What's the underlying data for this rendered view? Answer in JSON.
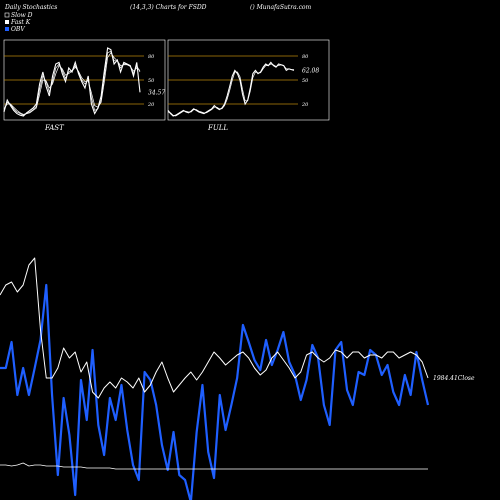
{
  "header": {
    "left": "Daily Stochastics",
    "center": "(14,3,3) Charts for FSDD",
    "right": "() MunafaSutra.com"
  },
  "legend": [
    {
      "label": "Slow  D",
      "color": "#ffffff",
      "filled": false
    },
    {
      "label": "Fast  K",
      "color": "#ffffff",
      "filled": true
    },
    {
      "label": "OBV",
      "color": "#1f5fff",
      "filled": true
    }
  ],
  "colors": {
    "background": "#000000",
    "level_line": "#b8860b",
    "obv": "#1f5fff",
    "line": "#ffffff"
  },
  "chart_data": [
    {
      "type": "line",
      "name": "fast-panel",
      "panel_label": "FAST",
      "ylim": [
        0,
        100
      ],
      "yticks": [
        "80",
        "50",
        "20"
      ],
      "levels": [
        80,
        50,
        20
      ],
      "last_value_label": "34.57",
      "series": [
        {
          "values": [
            10,
            25,
            18,
            12,
            8,
            6,
            5,
            9,
            12,
            15,
            20,
            45,
            60,
            42,
            30,
            55,
            70,
            72,
            58,
            48,
            65,
            60,
            72,
            58,
            48,
            40,
            55,
            20,
            8,
            15,
            30,
            62,
            90,
            88,
            70,
            75,
            60,
            72,
            70,
            68,
            55,
            72,
            34.57
          ]
        },
        {
          "values": [
            12,
            22,
            20,
            14,
            10,
            8,
            6,
            8,
            10,
            13,
            17,
            38,
            55,
            48,
            35,
            48,
            65,
            70,
            62,
            52,
            60,
            62,
            68,
            60,
            50,
            45,
            50,
            28,
            12,
            14,
            25,
            55,
            84,
            86,
            74,
            74,
            65,
            70,
            70,
            67,
            58,
            68,
            60
          ]
        },
        {
          "values": [
            14,
            20,
            20,
            16,
            12,
            9,
            7,
            8,
            9,
            12,
            15,
            32,
            50,
            49,
            40,
            45,
            58,
            68,
            64,
            56,
            58,
            61,
            66,
            61,
            53,
            48,
            49,
            34,
            18,
            16,
            22,
            48,
            78,
            84,
            78,
            74,
            68,
            69,
            69,
            67,
            61,
            65,
            62
          ]
        }
      ]
    },
    {
      "type": "line",
      "name": "full-panel",
      "panel_label": "FULL",
      "ylim": [
        0,
        100
      ],
      "yticks": [
        "80",
        "50",
        "20"
      ],
      "levels": [
        80,
        50,
        20
      ],
      "last_value_label": "62.08",
      "series": [
        {
          "values": [
            12,
            8,
            5,
            6,
            8,
            10,
            12,
            10,
            9,
            11,
            14,
            12,
            10,
            9,
            8,
            10,
            12,
            14,
            18,
            15,
            13,
            15,
            20,
            30,
            42,
            55,
            62,
            58,
            50,
            32,
            20,
            25,
            40,
            58,
            62,
            58,
            60,
            66,
            70,
            68,
            72,
            68,
            66,
            70,
            69,
            68,
            62,
            64,
            63,
            62.08
          ]
        },
        {
          "values": [
            10,
            9,
            6,
            5,
            7,
            9,
            11,
            11,
            10,
            10,
            13,
            13,
            11,
            10,
            9,
            9,
            11,
            13,
            16,
            16,
            14,
            14,
            18,
            26,
            37,
            50,
            60,
            60,
            54,
            38,
            24,
            24,
            36,
            53,
            60,
            59,
            59,
            64,
            68,
            68,
            70,
            69,
            67,
            68,
            69,
            68,
            64,
            64,
            63,
            63
          ]
        }
      ]
    },
    {
      "type": "line",
      "name": "price-panel",
      "last_value_label": "1984.41Close",
      "series": [
        {
          "name": "OBV",
          "values": [
            368,
            368,
            342,
            395,
            368,
            395,
            368,
            340,
            285,
            395,
            475,
            398,
            435,
            495,
            380,
            420,
            350,
            425,
            455,
            398,
            420,
            385,
            430,
            465,
            480,
            372,
            380,
            405,
            445,
            470,
            432,
            475,
            480,
            502,
            432,
            385,
            452,
            478,
            395,
            430,
            405,
            378,
            325,
            342,
            360,
            370,
            340,
            365,
            350,
            332,
            362,
            375,
            400,
            380,
            345,
            358,
            405,
            425,
            350,
            342,
            390,
            405,
            372,
            375,
            350,
            355,
            375,
            365,
            392,
            405,
            375,
            395,
            352,
            380,
            405
          ]
        },
        {
          "name": "",
          "values": [
            295,
            285,
            282,
            292,
            285,
            265,
            258,
            330,
            378,
            378,
            368,
            348,
            358,
            352,
            372,
            362,
            392,
            398,
            388,
            382,
            388,
            378,
            382,
            388,
            378,
            392,
            385,
            372,
            362,
            378,
            392,
            385,
            378,
            372,
            380,
            372,
            362,
            352,
            358,
            365,
            360,
            355,
            352,
            358,
            368,
            375,
            370,
            358,
            352,
            360,
            368,
            378,
            372,
            355,
            352,
            358,
            362,
            358,
            350,
            352,
            358,
            352,
            352,
            358,
            355,
            355,
            358,
            352,
            352,
            358,
            355,
            352,
            355,
            362,
            378
          ]
        },
        {
          "name": "",
          "values": [
            465,
            465,
            466,
            465,
            463,
            466,
            465,
            465,
            466,
            466,
            466,
            467,
            467,
            467,
            467,
            468,
            468,
            468,
            468,
            468,
            469,
            469,
            469,
            469,
            469,
            469,
            469,
            469,
            469,
            469,
            469,
            469,
            469,
            469,
            469,
            469,
            469,
            469,
            469,
            469,
            469,
            469,
            469,
            469,
            469,
            469,
            469,
            469,
            469,
            469,
            469,
            469,
            469,
            469,
            469,
            469,
            469,
            469,
            469,
            469,
            469,
            469,
            469,
            469,
            469,
            469,
            469,
            469,
            469,
            469,
            469,
            469,
            469,
            469,
            469
          ]
        }
      ]
    }
  ]
}
